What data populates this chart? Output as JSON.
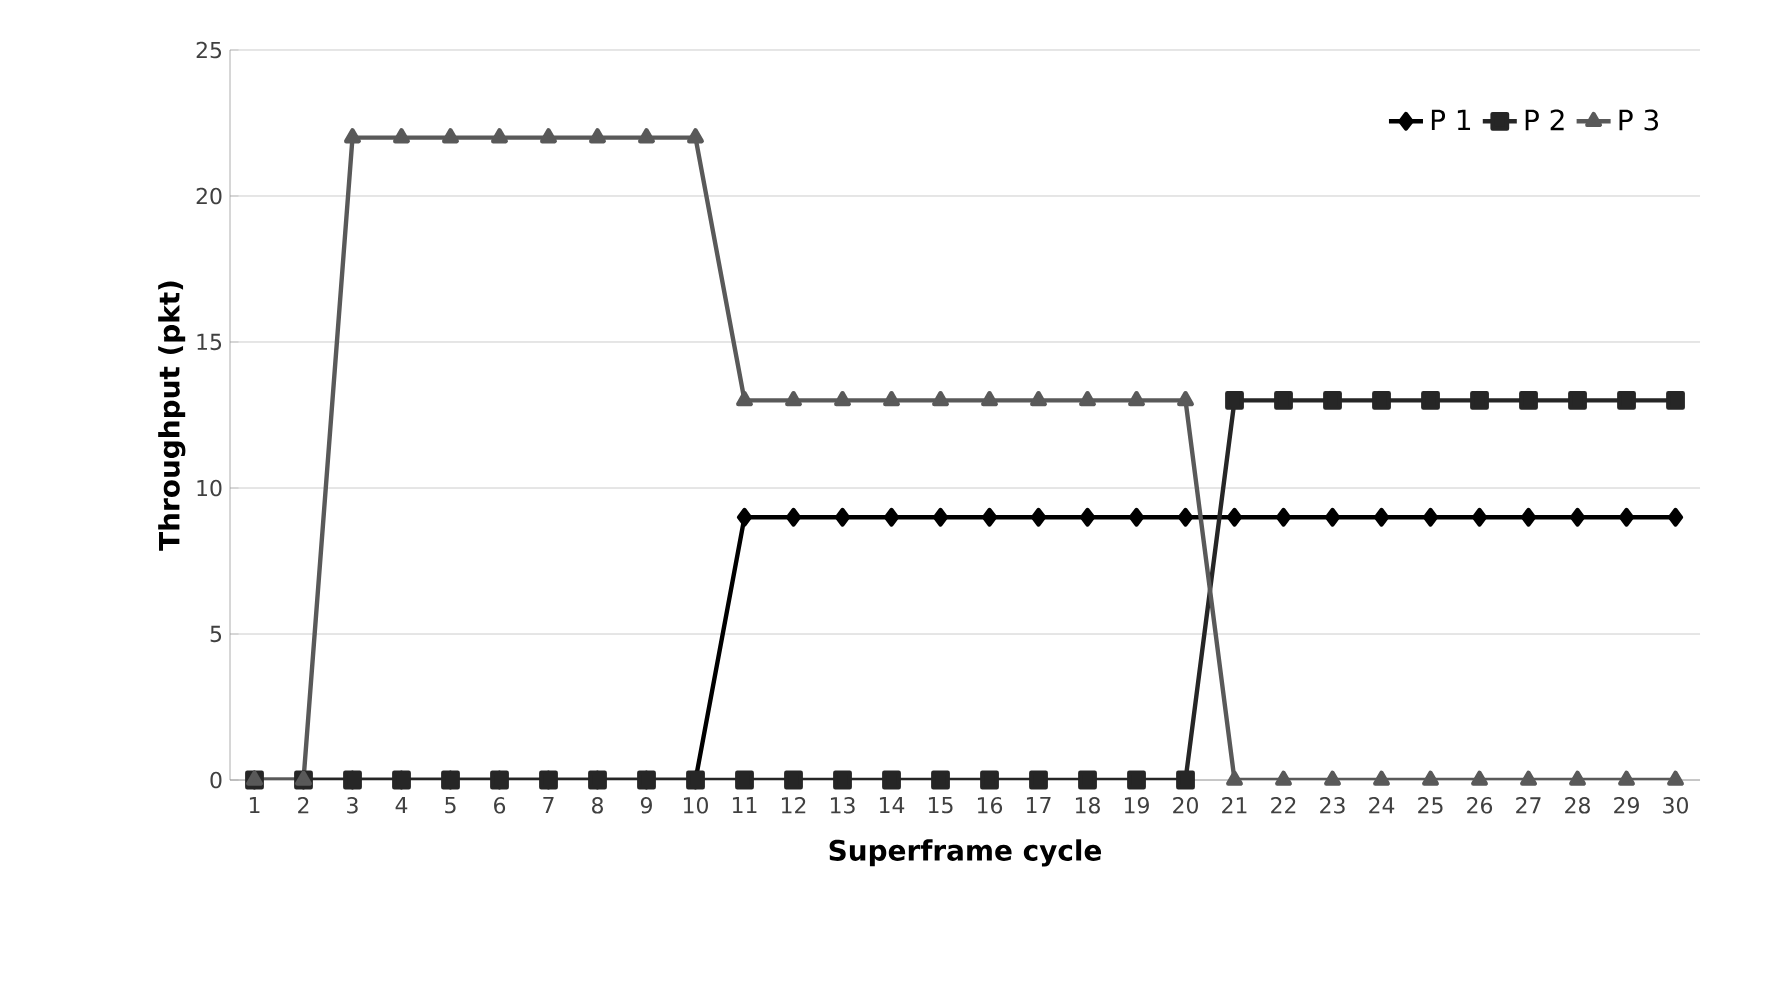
{
  "chart_data": {
    "type": "line",
    "xlabel": "Superframe cycle",
    "ylabel": "Throughput (pkt)",
    "categories": [
      "1",
      "2",
      "3",
      "4",
      "5",
      "6",
      "7",
      "8",
      "9",
      "10",
      "11",
      "12",
      "13",
      "14",
      "15",
      "16",
      "17",
      "18",
      "19",
      "20",
      "21",
      "22",
      "23",
      "24",
      "25",
      "26",
      "27",
      "28",
      "29",
      "30"
    ],
    "series": [
      {
        "name": "P 1",
        "color": "#000000",
        "marker": "diamond",
        "values": [
          0,
          0,
          0,
          0,
          0,
          0,
          0,
          0,
          0,
          0,
          9,
          9,
          9,
          9,
          9,
          9,
          9,
          9,
          9,
          9,
          9,
          9,
          9,
          9,
          9,
          9,
          9,
          9,
          9,
          9
        ]
      },
      {
        "name": "P 2",
        "color": "#262626",
        "marker": "square",
        "values": [
          0,
          0,
          0,
          0,
          0,
          0,
          0,
          0,
          0,
          0,
          0,
          0,
          0,
          0,
          0,
          0,
          0,
          0,
          0,
          0,
          13,
          13,
          13,
          13,
          13,
          13,
          13,
          13,
          13,
          13
        ]
      },
      {
        "name": "P 3",
        "color": "#595959",
        "marker": "triangle",
        "values": [
          0,
          0,
          22,
          22,
          22,
          22,
          22,
          22,
          22,
          22,
          13,
          13,
          13,
          13,
          13,
          13,
          13,
          13,
          13,
          13,
          0,
          0,
          0,
          0,
          0,
          0,
          0,
          0,
          0,
          0
        ]
      }
    ],
    "ylim": [
      0,
      25
    ],
    "yticks": [
      0,
      5,
      10,
      15,
      20,
      25
    ],
    "grid": "y",
    "legend": "top right"
  }
}
